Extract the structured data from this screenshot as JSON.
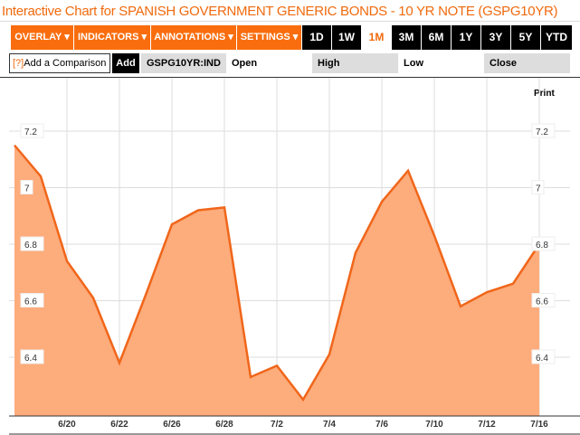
{
  "title": "Interactive Chart for SPANISH GOVERNMENT GENERIC BONDS - 10 YR NOTE (GSPG10YR)",
  "toolbar": {
    "menus": [
      "OVERLAY ▾",
      "INDICATORS ▾",
      "ANNOTATIONS ▾",
      "SETTINGS ▾"
    ],
    "ranges": [
      "1D",
      "1W",
      "1M",
      "3M",
      "6M",
      "1Y",
      "3Y",
      "5Y",
      "YTD"
    ],
    "active_range": "1M"
  },
  "comparison": {
    "help": "[?]",
    "label": "Add a Comparison",
    "add": "Add",
    "ticker": "GSPG10YR:IND",
    "open": "Open",
    "high": "High",
    "low": "Low",
    "close": "Close"
  },
  "print": "Print",
  "colors": {
    "accent": "#f96d0e",
    "line": "#f0661a",
    "fill": "#fdac7c"
  },
  "chart_data": {
    "type": "area",
    "title": "SPANISH GOVERNMENT GENERIC BONDS - 10 YR NOTE",
    "x": [
      "6/18",
      "6/19",
      "6/20",
      "6/21",
      "6/22",
      "6/25",
      "6/26",
      "6/27",
      "6/28",
      "6/29",
      "7/2",
      "7/3",
      "7/4",
      "7/5",
      "7/6",
      "7/9",
      "7/10",
      "7/11",
      "7/12",
      "7/13",
      "7/16"
    ],
    "values": [
      7.15,
      7.04,
      6.74,
      6.61,
      6.38,
      6.62,
      6.87,
      6.92,
      6.93,
      6.33,
      6.37,
      6.25,
      6.41,
      6.77,
      6.95,
      7.06,
      6.83,
      6.58,
      6.63,
      6.66,
      6.8
    ],
    "xticks": [
      "6/20",
      "6/22",
      "6/26",
      "6/28",
      "7/2",
      "7/4",
      "7/6",
      "7/10",
      "7/12",
      "7/16"
    ],
    "yticks": [
      "6.4",
      "6.6",
      "6.8",
      "7",
      "7.2"
    ],
    "ylim": [
      6.2,
      7.3
    ],
    "grid": true
  }
}
